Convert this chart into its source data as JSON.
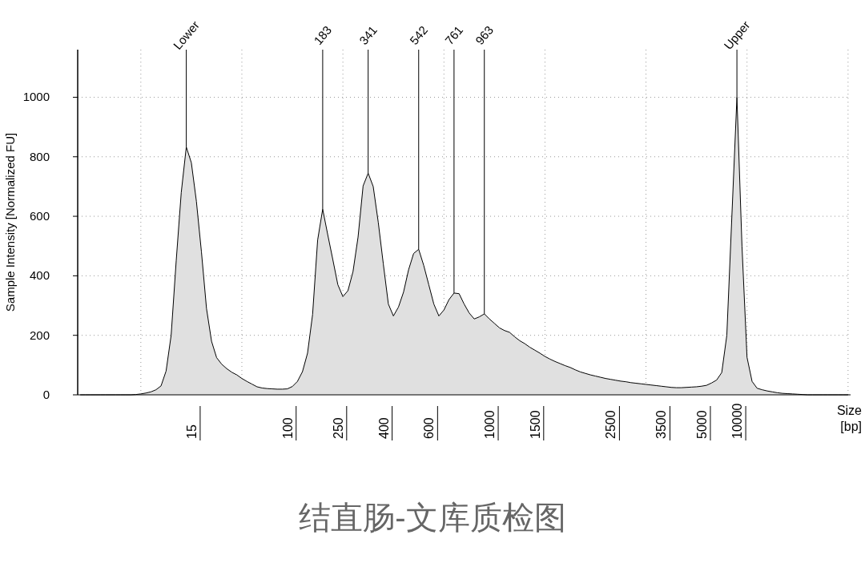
{
  "chart_data": {
    "type": "area",
    "title": "结直肠-文库质检图",
    "xlabel": "Size [bp]",
    "ylabel": "Sample Intensity [Normalized FU]",
    "color": "#e0e0e0",
    "grid": true,
    "ylim": [
      0,
      1160
    ],
    "yticks": [
      0,
      200,
      400,
      600,
      800,
      1000
    ],
    "categories": [
      null,
      null,
      null,
      null,
      null,
      null,
      null,
      null,
      null,
      null,
      null,
      null,
      null,
      null,
      null,
      null,
      null,
      null,
      null,
      null,
      null,
      null,
      "15",
      null,
      null,
      null,
      null,
      null,
      null,
      null,
      null,
      null,
      null,
      null,
      null,
      null,
      null,
      null,
      null,
      null,
      null,
      "100",
      null,
      null,
      null,
      null,
      null,
      null,
      null,
      null,
      null,
      "250",
      null,
      null,
      null,
      null,
      null,
      null,
      null,
      null,
      "400",
      null,
      null,
      null,
      null,
      null,
      null,
      null,
      null,
      "600",
      null,
      null,
      null,
      null,
      null,
      null,
      null,
      null,
      null,
      null,
      null,
      "1000",
      null,
      null,
      null,
      null,
      null,
      null,
      null,
      null,
      "1500",
      null,
      null,
      null,
      null,
      null,
      null,
      null,
      null,
      null,
      null,
      null,
      null,
      null,
      null,
      "2500",
      null,
      null,
      null,
      null,
      null,
      null,
      null,
      null,
      null,
      "3500",
      null,
      null,
      null,
      null,
      null,
      null,
      null,
      "5000",
      null,
      null,
      null,
      null,
      null,
      null,
      "10000",
      null,
      null,
      null,
      null,
      null,
      null,
      null,
      null,
      null,
      null,
      null,
      null,
      null,
      null,
      null,
      null,
      null,
      null,
      null,
      null,
      null,
      null
    ],
    "values": [
      0,
      0,
      0,
      0,
      0,
      0,
      0,
      0,
      0,
      0,
      0,
      1,
      3,
      6,
      10,
      17,
      30,
      80,
      200,
      450,
      680,
      833,
      780,
      650,
      480,
      290,
      180,
      125,
      103,
      88,
      76,
      67,
      55,
      45,
      36,
      27,
      23,
      21,
      20,
      19,
      19,
      20,
      28,
      45,
      78,
      140,
      270,
      520,
      624,
      538,
      455,
      370,
      330,
      350,
      414,
      530,
      702,
      745,
      700,
      580,
      440,
      305,
      265,
      295,
      345,
      420,
      475,
      489,
      435,
      370,
      305,
      265,
      285,
      320,
      342,
      340,
      305,
      275,
      255,
      262,
      272,
      255,
      240,
      225,
      216,
      210,
      195,
      182,
      172,
      160,
      150,
      140,
      129,
      120,
      112,
      105,
      98,
      92,
      84,
      77,
      72,
      67,
      63,
      59,
      55,
      52,
      49,
      46,
      44,
      41,
      39,
      37,
      35,
      33,
      31,
      29,
      27,
      25,
      24,
      24,
      25,
      26,
      27,
      29,
      32,
      40,
      50,
      75,
      200,
      600,
      1000,
      500,
      126,
      45,
      22,
      17,
      13,
      10,
      7,
      5,
      4,
      3,
      2,
      1,
      0,
      0,
      0,
      0,
      0,
      0,
      0,
      0,
      0
    ],
    "annotations": [
      {
        "text": "Lower",
        "y": 833
      },
      {
        "text": "183",
        "y": 624
      },
      {
        "text": "341",
        "y": 745
      },
      {
        "text": "542",
        "y": 489
      },
      "761",
      "963",
      {
        "text": "Upper",
        "y": 1000
      }
    ]
  }
}
